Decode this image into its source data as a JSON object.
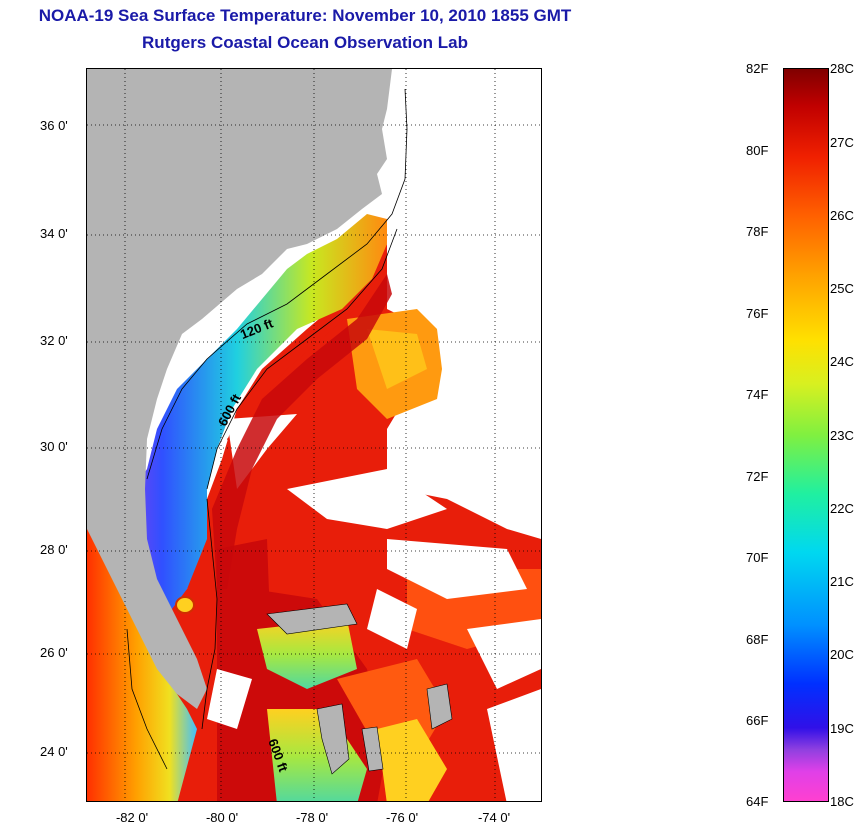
{
  "title": {
    "line1": "NOAA-19 Sea Surface Temperature:  November 10, 2010 1855 GMT",
    "line2": "Rutgers Coastal Ocean Observation Lab"
  },
  "map": {
    "lat_labels": [
      "36 0'",
      "34 0'",
      "32 0'",
      "30 0'",
      "28 0'",
      "26 0'",
      "24 0'"
    ],
    "lon_labels": [
      "-82 0'",
      "-80 0'",
      "-78 0'",
      "-76 0'",
      "-74 0'"
    ],
    "isobath_labels": [
      "120 ft",
      "600 ft",
      "600 ft"
    ],
    "colors": {
      "land": "#b4b4b4",
      "cloud": "#ffffff",
      "warm": "#e81e0a",
      "hot": "#cc0a0a",
      "mid": "#ff8a10",
      "cool": "#3a5aff",
      "cold": "#d030e0"
    }
  },
  "colorbar": {
    "f_labels": [
      "82F",
      "80F",
      "78F",
      "76F",
      "74F",
      "72F",
      "70F",
      "68F",
      "66F",
      "64F"
    ],
    "c_labels": [
      "28C",
      "27C",
      "26C",
      "25C",
      "24C",
      "23C",
      "22C",
      "21C",
      "20C",
      "19C",
      "18C"
    ]
  }
}
